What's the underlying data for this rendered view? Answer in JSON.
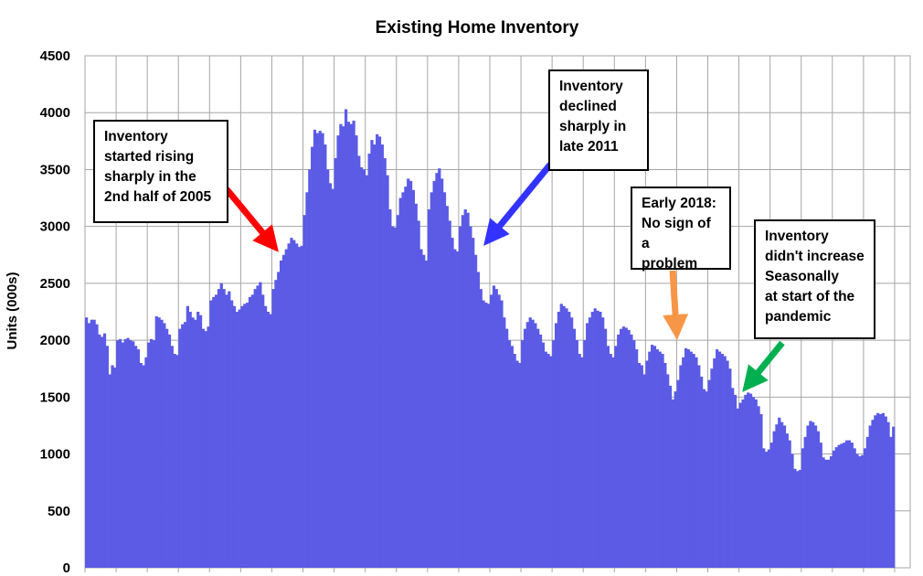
{
  "chart_data": {
    "type": "bar",
    "title": "Existing Home Inventory",
    "ylabel": "Units (000s)",
    "xlabel": "",
    "ylim": [
      0,
      4500
    ],
    "yticks": [
      0,
      500,
      1000,
      1500,
      2000,
      2500,
      3000,
      3500,
      4000,
      4500
    ],
    "grid": true,
    "bar_color": "#5b5be6",
    "x_start": "1999-01",
    "x_end": "2022-12",
    "x_step": "month",
    "values": [
      2200,
      2150,
      2180,
      2180,
      2140,
      2050,
      2030,
      2060,
      1950,
      1700,
      1780,
      1760,
      2000,
      2010,
      1980,
      2010,
      2020,
      2000,
      1990,
      1950,
      1920,
      1800,
      1780,
      1850,
      1980,
      2010,
      2000,
      2210,
      2200,
      2180,
      2150,
      2100,
      2050,
      1950,
      1880,
      1870,
      2100,
      2140,
      2160,
      2300,
      2250,
      2200,
      2180,
      2250,
      2220,
      2100,
      2080,
      2120,
      2350,
      2380,
      2400,
      2450,
      2500,
      2450,
      2400,
      2430,
      2350,
      2300,
      2250,
      2270,
      2300,
      2320,
      2330,
      2380,
      2400,
      2450,
      2480,
      2510,
      2400,
      2300,
      2250,
      2230,
      2450,
      2530,
      2600,
      2700,
      2750,
      2800,
      2850,
      2900,
      2880,
      2850,
      2820,
      2830,
      3100,
      3300,
      3500,
      3700,
      3850,
      3820,
      3840,
      3820,
      3720,
      3500,
      3380,
      3330,
      3600,
      3800,
      3900,
      3880,
      4030,
      3920,
      3900,
      3930,
      3800,
      3620,
      3520,
      3500,
      3450,
      3640,
      3760,
      3720,
      3810,
      3790,
      3720,
      3600,
      3450,
      3150,
      3000,
      2990,
      3100,
      3250,
      3300,
      3350,
      3420,
      3400,
      3320,
      3200,
      3050,
      2800,
      2750,
      2700,
      3150,
      3300,
      3400,
      3470,
      3510,
      3420,
      3300,
      3180,
      3050,
      2900,
      2800,
      2780,
      3000,
      3100,
      3150,
      3120,
      3000,
      2900,
      2750,
      2600,
      2450,
      2350,
      2330,
      2320,
      2400,
      2480,
      2450,
      2400,
      2350,
      2200,
      2100,
      2000,
      1950,
      1880,
      1820,
      1800,
      2000,
      2100,
      2160,
      2200,
      2180,
      2150,
      2100,
      2050,
      1980,
      1900,
      1880,
      1860,
      2000,
      2150,
      2250,
      2320,
      2300,
      2280,
      2250,
      2200,
      2100,
      2000,
      1880,
      1850,
      2000,
      2150,
      2200,
      2250,
      2280,
      2260,
      2250,
      2200,
      2100,
      1950,
      1880,
      1850,
      1950,
      2050,
      2100,
      2120,
      2110,
      2090,
      2050,
      2000,
      1920,
      1800,
      1780,
      1700,
      1820,
      1900,
      1960,
      1950,
      1920,
      1900,
      1880,
      1800,
      1700,
      1600,
      1480,
      1550,
      1650,
      1780,
      1850,
      1930,
      1920,
      1900,
      1880,
      1850,
      1780,
      1680,
      1570,
      1550,
      1650,
      1750,
      1840,
      1920,
      1900,
      1880,
      1860,
      1820,
      1750,
      1580,
      1520,
      1400,
      1450,
      1480,
      1520,
      1540,
      1530,
      1500,
      1480,
      1420,
      1350,
      1050,
      1020,
      1040,
      1100,
      1200,
      1260,
      1320,
      1280,
      1250,
      1180,
      1120,
      1000,
      870,
      850,
      860,
      1050,
      1150,
      1250,
      1290,
      1280,
      1250,
      1200,
      1100,
      970,
      950,
      950,
      980,
      1030,
      1060,
      1080,
      1090,
      1100,
      1120,
      1120,
      1100,
      1050,
      1000,
      980,
      990,
      1050,
      1150,
      1250,
      1300,
      1340,
      1360,
      1350,
      1360,
      1330,
      1280,
      1150,
      1240
    ],
    "annotations": [
      {
        "text": "Inventory\nstarted rising\nsharply in the\n2nd half of 2005",
        "arrow_color": "#ff0000"
      },
      {
        "text": "Inventory\ndeclined\nsharply in\nlate 2011",
        "arrow_color": "#3333ff"
      },
      {
        "text": "Early 2018:\nNo sign of a\nproblem",
        "arrow_color": "#f79646"
      },
      {
        "text": "Inventory\ndidn't increase\nSeasonally\nat start of the\npandemic",
        "arrow_color": "#00b050"
      }
    ]
  }
}
